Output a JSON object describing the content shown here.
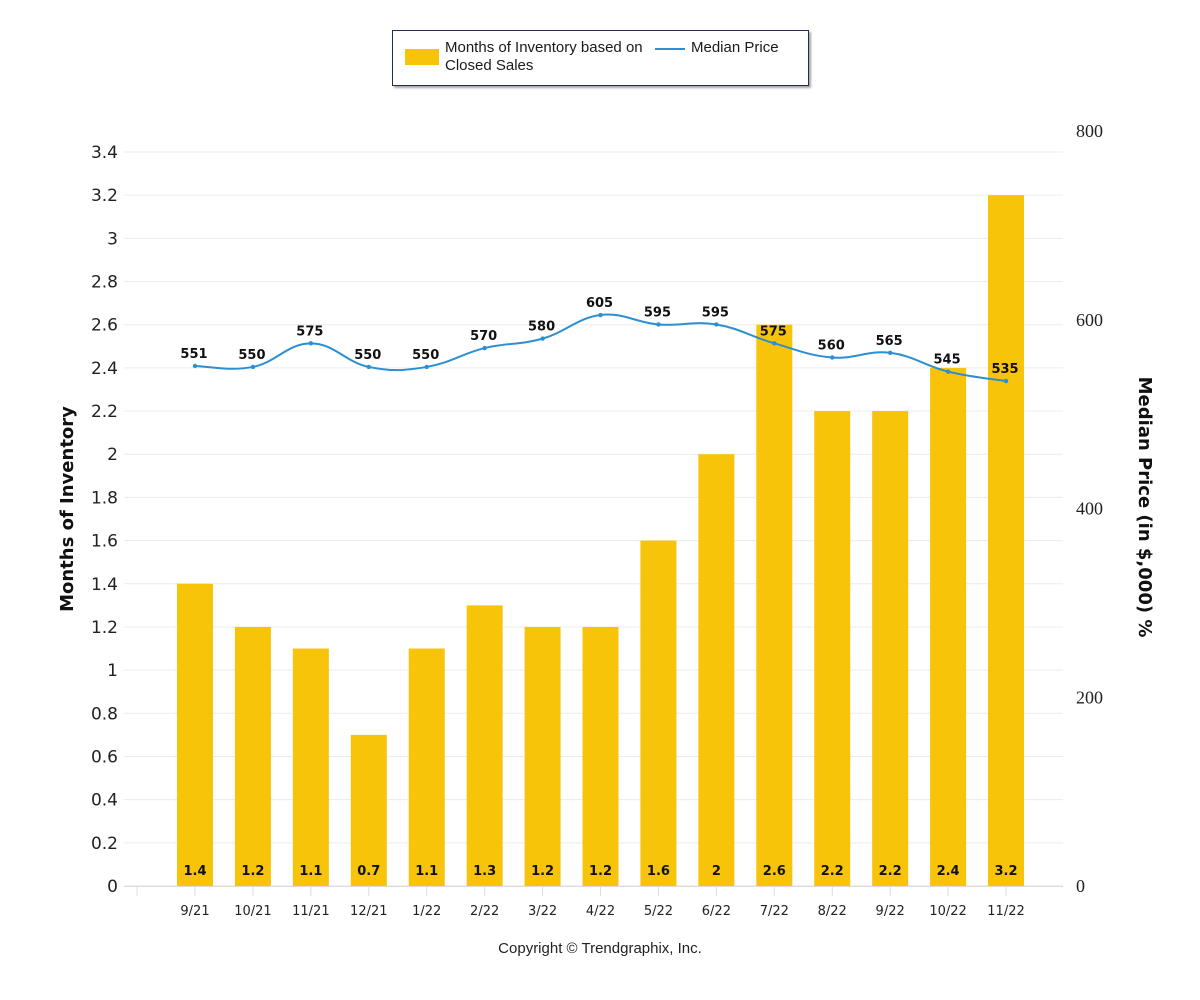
{
  "chart_data": {
    "type": "bar",
    "title": "",
    "categories": [
      "9/21",
      "10/21",
      "11/21",
      "12/21",
      "1/22",
      "2/22",
      "3/22",
      "4/22",
      "5/22",
      "6/22",
      "7/22",
      "8/22",
      "9/22",
      "10/22",
      "11/22"
    ],
    "series": [
      {
        "name": "Months of Inventory based on Closed Sales",
        "type": "bar",
        "axis": "left",
        "color": "#f7c409",
        "values": [
          1.4,
          1.2,
          1.1,
          0.7,
          1.1,
          1.3,
          1.2,
          1.2,
          1.6,
          2,
          2.6,
          2.2,
          2.2,
          2.4,
          3.2
        ],
        "labels": [
          "1.4",
          "1.2",
          "1.1",
          "0.7",
          "1.1",
          "1.3",
          "1.2",
          "1.2",
          "1.6",
          "2",
          "2.6",
          "2.2",
          "2.2",
          "2.4",
          "3.2"
        ]
      },
      {
        "name": "Median Price",
        "type": "line",
        "axis": "right",
        "color": "#2b8fd1",
        "values": [
          551,
          550,
          575,
          550,
          550,
          570,
          580,
          605,
          595,
          595,
          575,
          560,
          565,
          545,
          535
        ],
        "labels": [
          "551",
          "550",
          "575",
          "550",
          "550",
          "570",
          "580",
          "605",
          "595",
          "595",
          "575",
          "560",
          "565",
          "545",
          "535"
        ]
      }
    ],
    "ylabel": "Months of Inventory",
    "y2label": "Median Price (in $,000) %",
    "xlabel": "",
    "ylim": [
      0,
      3.5
    ],
    "yticks": [
      0,
      0.2,
      0.4,
      0.6,
      0.8,
      1,
      1.2,
      1.4,
      1.6,
      1.8,
      2,
      2.2,
      2.4,
      2.6,
      2.8,
      3,
      3.2,
      3.4
    ],
    "ytick_labels": [
      "0",
      "0.2",
      "0.4",
      "0.6",
      "0.8",
      "1",
      "1.2",
      "1.4",
      "1.6",
      "1.8",
      "2",
      "2.2",
      "2.4",
      "2.6",
      "2.8",
      "3",
      "3.2",
      "3.4"
    ],
    "y2lim": [
      0,
      800
    ],
    "y2ticks": [
      0,
      200,
      400,
      600,
      800
    ],
    "y2tick_labels": [
      "0",
      "200",
      "400",
      "600",
      "800"
    ],
    "grid": true,
    "legend_position": "top-center"
  },
  "legend": {
    "bar_label": "Months of Inventory based on Closed Sales",
    "line_label": "Median Price"
  },
  "footer": {
    "copyright": "Copyright © Trendgraphix, Inc."
  }
}
